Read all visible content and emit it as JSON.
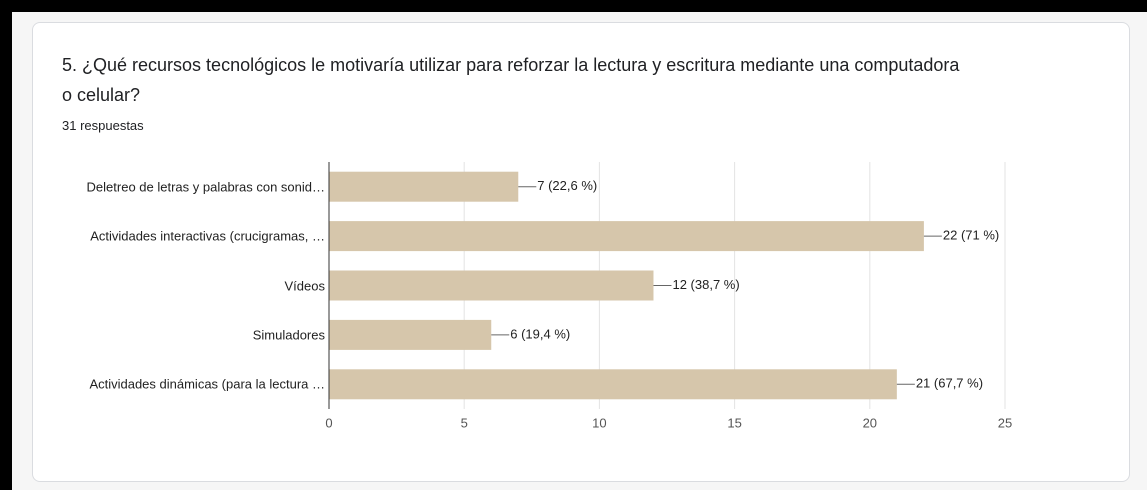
{
  "chart_data": {
    "type": "bar",
    "orientation": "horizontal",
    "title": "5. ¿Qué recursos tecnológicos le motivaría utilizar para reforzar la lectura y escritura mediante una computadora o celular?",
    "subtitle": "31 respuestas",
    "categories": [
      "Deletreo de letras y palabras con sonid…",
      "Actividades interactivas (crucigramas, …",
      "Vídeos",
      "Simuladores",
      "Actividades dinámicas (para la lectura …"
    ],
    "values": [
      7,
      22,
      12,
      6,
      21
    ],
    "value_labels": [
      "7 (22,6 %)",
      "22 (71 %)",
      "12 (38,7 %)",
      "6 (19,4 %)",
      "21 (67,7 %)"
    ],
    "color": "#d6c6ab",
    "xlim": [
      0,
      25
    ],
    "xticks": [
      0,
      5,
      10,
      15,
      20,
      25
    ],
    "grid": true
  }
}
